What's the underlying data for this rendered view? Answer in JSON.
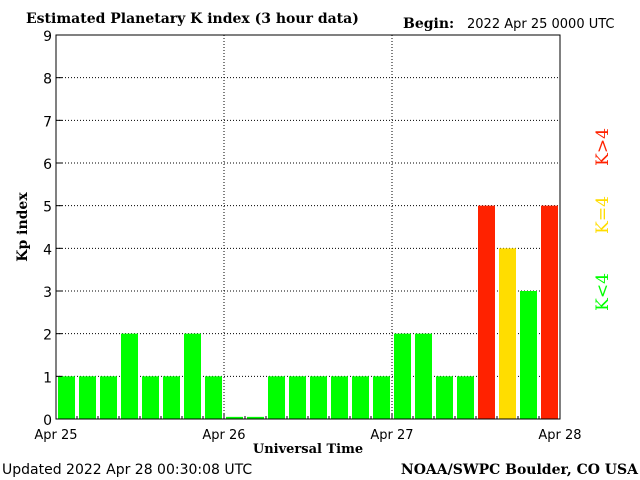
{
  "header": {
    "title": "Estimated Planetary K index (3 hour data)",
    "begin_label": "Begin:",
    "begin_value": "2022 Apr 25 0000 UTC"
  },
  "footer": {
    "updated": "Updated 2022 Apr 28 00:30:08 UTC",
    "source": "NOAA/SWPC Boulder, CO USA"
  },
  "legend": {
    "low": "K<4",
    "mid": "K=4",
    "high": "K>4"
  },
  "colors": {
    "low": "#00ff00",
    "mid": "#ffdd00",
    "high": "#ff2200",
    "axis": "#000000",
    "grid": "#000000",
    "background": "#ffffff"
  },
  "chart_data": {
    "type": "bar",
    "title": "Estimated Planetary K index (3 hour data)",
    "xlabel": "Universal Time",
    "ylabel": "Kp index",
    "ylim": [
      0,
      9
    ],
    "yticks": [
      "0",
      "1",
      "2",
      "3",
      "4",
      "5",
      "6",
      "7",
      "8",
      "9"
    ],
    "xtick_labels": [
      "Apr 25",
      "Apr 26",
      "Apr 27",
      "Apr 28"
    ],
    "grid": true,
    "values": [
      1,
      1,
      1,
      2,
      1,
      1,
      2,
      1,
      0.05,
      0.05,
      1,
      1,
      1,
      1,
      1,
      1,
      2,
      2,
      1,
      1,
      5,
      4,
      3,
      5
    ]
  }
}
